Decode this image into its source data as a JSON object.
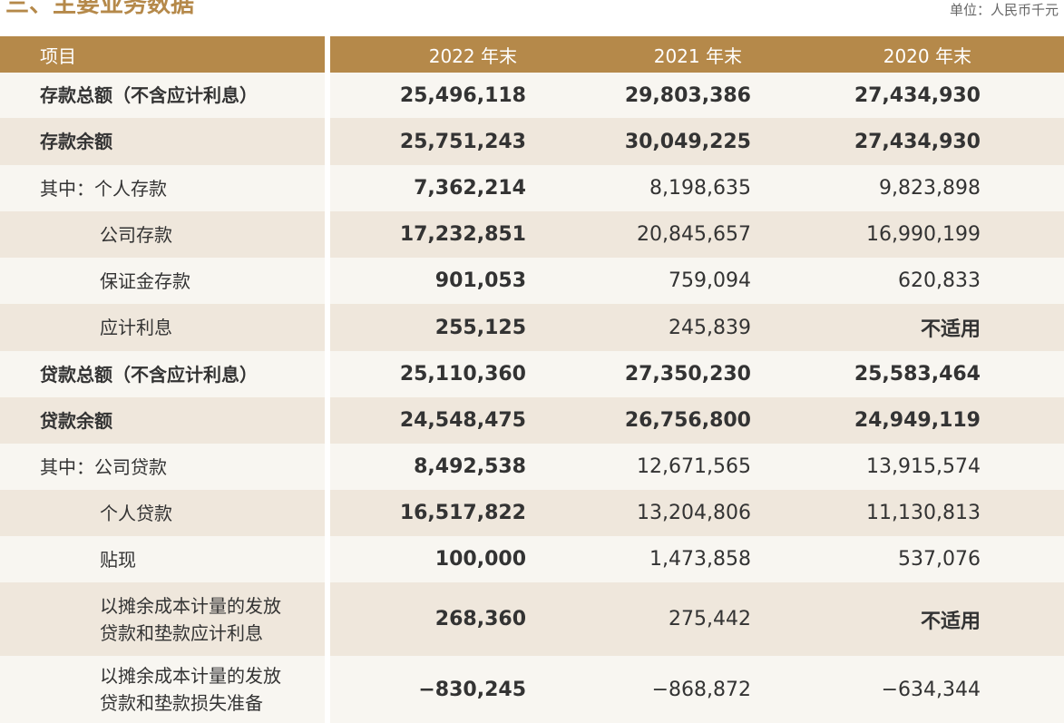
{
  "header": {
    "title": "三、主要业务数据",
    "unit": "单位：人民币千元"
  },
  "table": {
    "columns": [
      "项目",
      "2022 年末",
      "2021 年末",
      "2020 年末"
    ],
    "rows": [
      [
        "存款总额（不含应计利息）",
        "25,496,118",
        "29,803,386",
        "27,434,930"
      ],
      [
        "存款余额",
        "25,751,243",
        "30,049,225",
        "27,434,930"
      ],
      [
        "其中：个人存款",
        "7,362,214",
        "8,198,635",
        "9,823,898"
      ],
      [
        "公司存款",
        "17,232,851",
        "20,845,657",
        "16,990,199"
      ],
      [
        "保证金存款",
        "901,053",
        "759,094",
        "620,833"
      ],
      [
        "应计利息",
        "255,125",
        "245,839",
        "不适用"
      ],
      [
        "贷款总额（不含应计利息）",
        "25,110,360",
        "27,350,230",
        "25,583,464"
      ],
      [
        "贷款余额",
        "24,548,475",
        "26,756,800",
        "24,949,119"
      ],
      [
        "其中：公司贷款",
        "8,492,538",
        "12,671,565",
        "13,915,574"
      ],
      [
        "个人贷款",
        "16,517,822",
        "13,204,806",
        "11,130,813"
      ],
      [
        "贴现",
        "100,000",
        "1,473,858",
        "537,076"
      ],
      [
        "以摊余成本计量的发放\n贷款和垫款应计利息",
        "268,360",
        "275,442",
        "不适用"
      ],
      [
        "以摊余成本计量的发放\n贷款和垫款损失准备",
        "−830,245",
        "−868,872",
        "−634,344"
      ]
    ]
  }
}
